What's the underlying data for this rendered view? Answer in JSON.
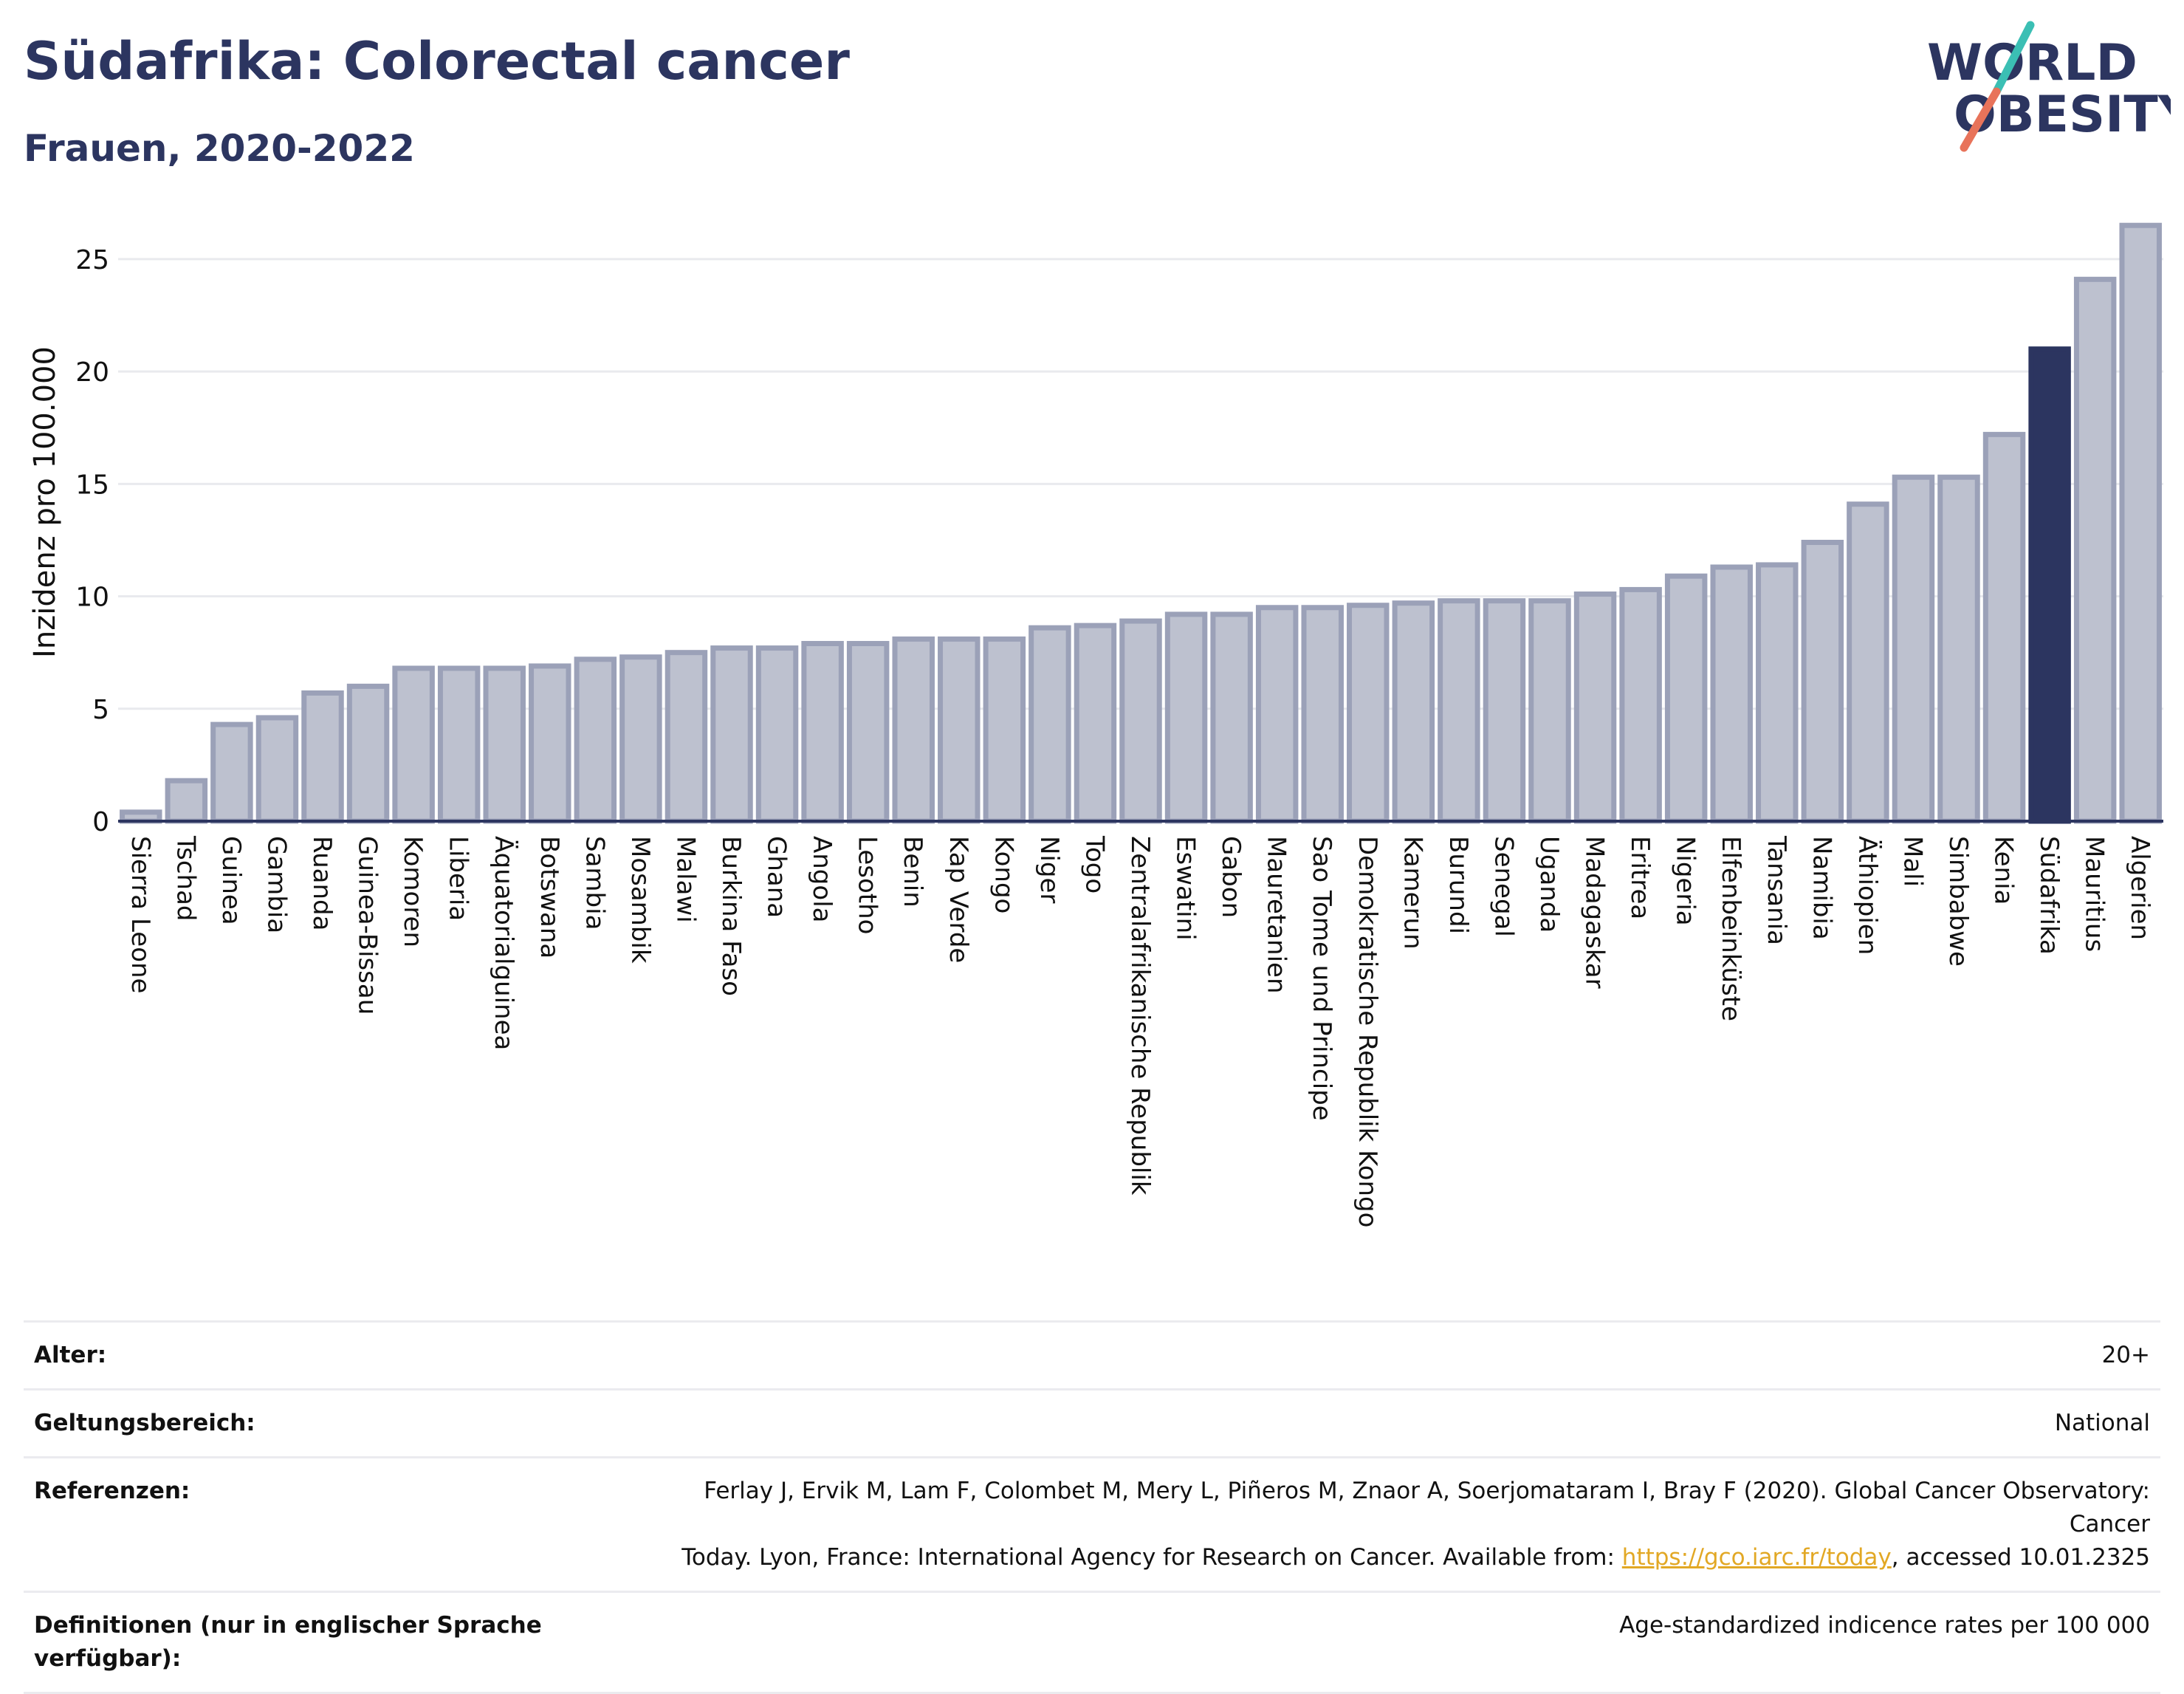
{
  "header": {
    "title": "Südafrika: Colorectal cancer",
    "subtitle": "Frauen, 2020-2022"
  },
  "logo": {
    "line1": "WORLD",
    "line2": "OBESITY",
    "colors": {
      "text": "#2c3560",
      "slash_top": "#3bbfb4",
      "slash_bottom": "#e8735a"
    }
  },
  "colors": {
    "bar_fill": "#bdc1cf",
    "bar_stroke": "#9ba1b8",
    "highlight": "#2c3560",
    "grid": "#e9eaee",
    "axis": "#2c3560",
    "link": "#e2a825"
  },
  "chart_data": {
    "type": "bar",
    "ylabel": "Inzidenz pro 100.000",
    "ylim": [
      0,
      27
    ],
    "yticks": [
      0,
      5,
      10,
      15,
      20,
      25
    ],
    "grid": true,
    "highlight": "Südafrika",
    "categories": [
      "Sierra Leone",
      "Tschad",
      "Guinea",
      "Gambia",
      "Ruanda",
      "Guinea-Bissau",
      "Komoren",
      "Liberia",
      "Äquatorialguinea",
      "Botswana",
      "Sambia",
      "Mosambik",
      "Malawi",
      "Burkina Faso",
      "Ghana",
      "Angola",
      "Lesotho",
      "Benin",
      "Kap Verde",
      "Kongo",
      "Niger",
      "Togo",
      "Zentralafrikanische Republik",
      "Eswatini",
      "Gabon",
      "Mauretanien",
      "Sao Tome und Principe",
      "Demokratische Republik Kongo",
      "Kamerun",
      "Burundi",
      "Senegal",
      "Uganda",
      "Madagaskar",
      "Eritrea",
      "Nigeria",
      "Elfenbeinküste",
      "Tansania",
      "Namibia",
      "Äthiopien",
      "Mali",
      "Simbabwe",
      "Kenia",
      "Südafrika",
      "Mauritius",
      "Algerien"
    ],
    "values": [
      0.4,
      1.8,
      4.3,
      4.6,
      5.7,
      6.0,
      6.8,
      6.8,
      6.8,
      6.9,
      7.2,
      7.3,
      7.5,
      7.7,
      7.7,
      7.9,
      7.9,
      8.1,
      8.1,
      8.1,
      8.6,
      8.7,
      8.9,
      9.2,
      9.2,
      9.5,
      9.5,
      9.6,
      9.7,
      9.8,
      9.8,
      9.8,
      10.1,
      10.3,
      10.9,
      11.3,
      11.4,
      12.4,
      14.1,
      15.3,
      15.3,
      17.2,
      21.0,
      24.1,
      26.5
    ]
  },
  "meta": [
    {
      "key": "Alter:",
      "value": "20+"
    },
    {
      "key": "Geltungsbereich:",
      "value": "National"
    },
    {
      "key": "Referenzen:",
      "value_line1": "Ferlay J, Ervik M, Lam F, Colombet M, Mery L, Piñeros M, Znaor A, Soerjomataram I, Bray F (2020). Global Cancer Observatory: Cancer",
      "value_line2_pre": "Today. Lyon, France: International Agency for Research on Cancer. Available from: ",
      "link": "https://gco.iarc.fr/today",
      "value_line2_post": ", accessed 10.01.2325"
    },
    {
      "key": "Definitionen (nur in englischer Sprache verfügbar):",
      "value": "Age-standardized indicence rates per 100 000"
    }
  ]
}
